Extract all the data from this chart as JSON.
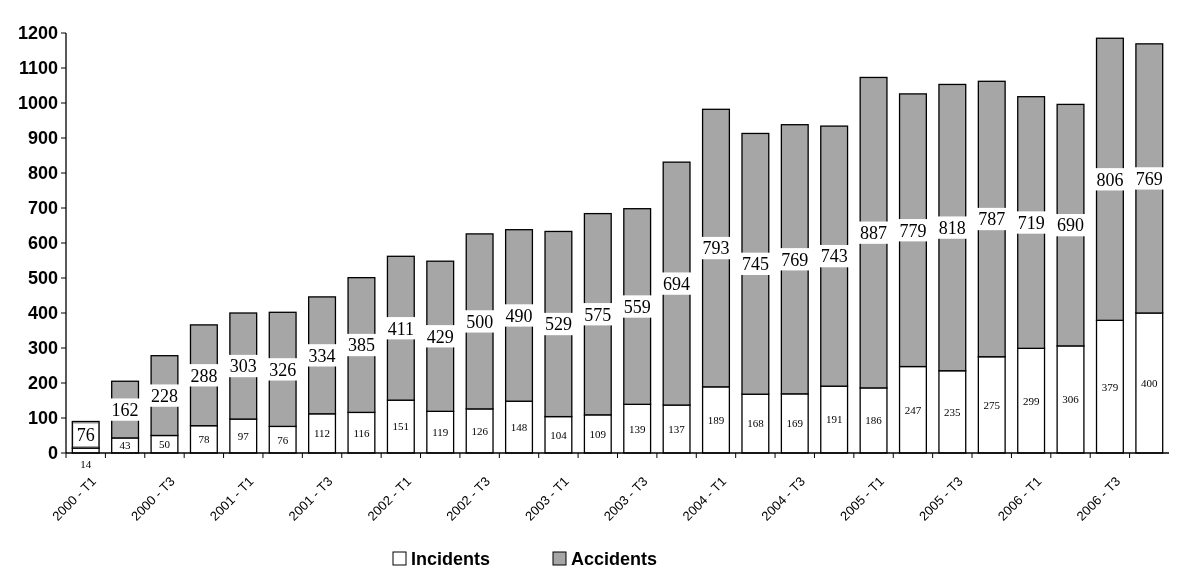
{
  "chart_data": {
    "type": "bar",
    "stacked": true,
    "categories": [
      "2000 - T1",
      null,
      "2000 - T3",
      null,
      "2001 - T1",
      null,
      "2001 - T3",
      null,
      "2002 - T1",
      null,
      "2002 - T3",
      null,
      "2003 - T1",
      null,
      "2003 - T3",
      null,
      "2004 - T1",
      null,
      "2004 - T3",
      null,
      "2005 - T1",
      null,
      "2005 - T3",
      null,
      "2006 - T1",
      null,
      "2006 - T3",
      null
    ],
    "series": [
      {
        "name": "Incidents",
        "color": "#ffffff",
        "values": [
          14,
          43,
          50,
          78,
          97,
          76,
          112,
          116,
          151,
          119,
          126,
          148,
          104,
          109,
          139,
          137,
          189,
          168,
          169,
          191,
          186,
          247,
          235,
          275,
          299,
          306,
          379,
          400
        ]
      },
      {
        "name": "Accidents",
        "color": "#a6a6a6",
        "values": [
          76,
          162,
          228,
          288,
          303,
          326,
          334,
          385,
          411,
          429,
          500,
          490,
          529,
          575,
          559,
          694,
          793,
          745,
          769,
          743,
          887,
          779,
          818,
          787,
          719,
          690,
          806,
          769
        ]
      }
    ],
    "ylim": [
      0,
      1200
    ],
    "yticks": [
      0,
      100,
      200,
      300,
      400,
      500,
      600,
      700,
      800,
      900,
      1000,
      1100,
      1200
    ],
    "data_labels": true,
    "legend": "bottom"
  }
}
